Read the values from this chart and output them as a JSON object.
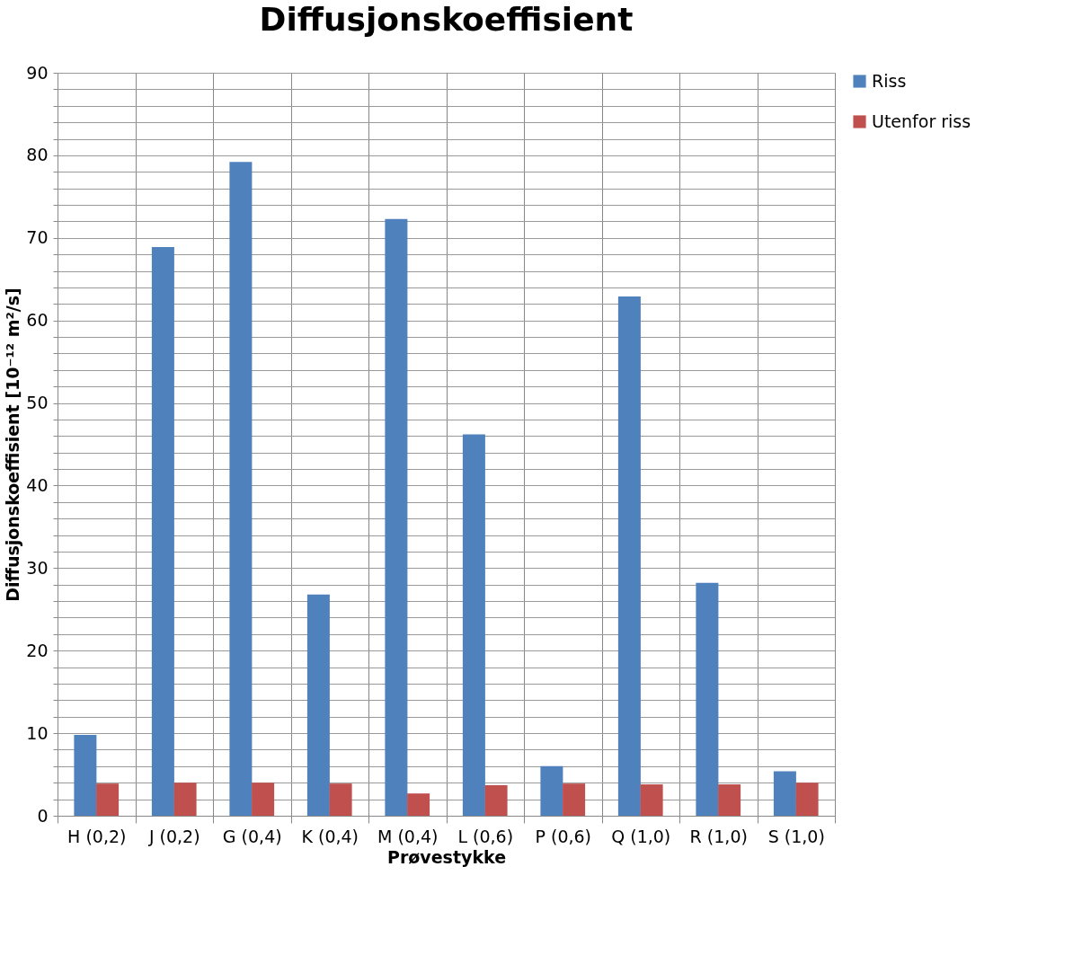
{
  "chart_data": {
    "type": "bar",
    "title": "Diffusjonskoeffisient",
    "xlabel": "Prøvestykke",
    "ylabel": "Diffusjonskoeffisient [10⁻¹² m²/s]",
    "categories": [
      "H (0,2)",
      "J (0,2)",
      "G (0,4)",
      "K (0,4)",
      "M (0,4)",
      "L (0,6)",
      "P (0,6)",
      "Q (1,0)",
      "R (1,0)",
      "S (1,0)"
    ],
    "series": [
      {
        "name": "Riss",
        "color": "#4f81bd",
        "values": [
          9.8,
          68.9,
          79.2,
          26.8,
          72.3,
          46.2,
          6.0,
          62.9,
          28.2,
          5.4
        ]
      },
      {
        "name": "Utenfor riss",
        "color": "#c0504d",
        "values": [
          3.9,
          4.0,
          4.0,
          3.9,
          2.7,
          3.7,
          3.9,
          3.8,
          3.8,
          4.0
        ]
      }
    ],
    "ylim": [
      0,
      90
    ],
    "yticks": [
      0,
      {
        "value": 2,
        "label": null
      },
      {
        "value": 4,
        "label": null
      },
      {
        "value": 6,
        "label": null
      },
      {
        "value": 8,
        "label": null
      },
      10,
      {
        "value": 12,
        "label": null
      },
      {
        "value": 14,
        "label": null
      },
      {
        "value": 16,
        "label": null
      },
      {
        "value": 18,
        "label": null
      },
      20,
      {
        "value": 22,
        "label": null
      },
      {
        "value": 24,
        "label": null
      },
      {
        "value": 26,
        "label": null
      },
      {
        "value": 28,
        "label": null
      },
      30,
      {
        "value": 32,
        "label": null
      },
      {
        "value": 34,
        "label": null
      },
      {
        "value": 36,
        "label": null
      },
      {
        "value": 38,
        "label": null
      },
      40,
      {
        "value": 42,
        "label": null
      },
      {
        "value": 44,
        "label": null
      },
      {
        "value": 46,
        "label": null
      },
      {
        "value": 48,
        "label": null
      },
      50,
      {
        "value": 52,
        "label": null
      },
      {
        "value": 54,
        "label": null
      },
      {
        "value": 56,
        "label": null
      },
      {
        "value": 58,
        "label": null
      },
      60,
      {
        "value": 62,
        "label": null
      },
      {
        "value": 64,
        "label": null
      },
      {
        "value": 66,
        "label": null
      },
      {
        "value": 68,
        "label": null
      },
      70,
      {
        "value": 72,
        "label": null
      },
      {
        "value": 74,
        "label": null
      },
      {
        "value": 76,
        "label": null
      },
      {
        "value": 78,
        "label": null
      },
      80,
      {
        "value": 82,
        "label": null
      },
      {
        "value": 84,
        "label": null
      },
      {
        "value": 86,
        "label": null
      },
      {
        "value": 88,
        "label": null
      },
      90
    ],
    "grid": true,
    "legend": "right"
  }
}
